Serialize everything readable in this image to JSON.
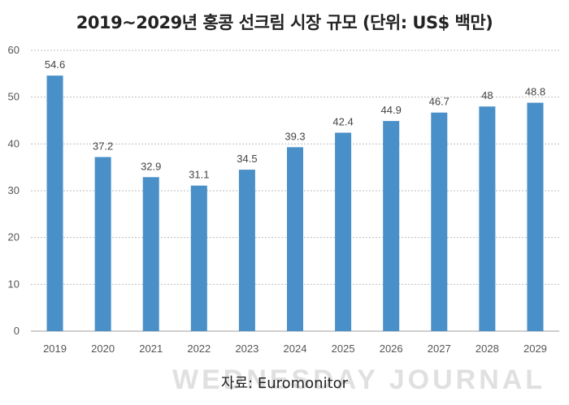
{
  "title": "2019~2029년 홍콩 선크림 시장 규모 (단위: US$ 백만)",
  "source": "자료: Euromonitor",
  "watermark": "WEDNESDAY JOURNAL",
  "colors": {
    "bar": "#4a90c8",
    "grid": "#bdbdbd",
    "axis": "#9e9e9e"
  },
  "chart_data": {
    "type": "bar",
    "title": "2019~2029년 홍콩 선크림 시장 규모 (단위: US$ 백만)",
    "categories": [
      "2019",
      "2020",
      "2021",
      "2022",
      "2023",
      "2024",
      "2025",
      "2026",
      "2027",
      "2028",
      "2029"
    ],
    "values": [
      54.6,
      37.2,
      32.9,
      31.1,
      34.5,
      39.3,
      42.4,
      44.9,
      46.7,
      48,
      48.8
    ],
    "data_labels": [
      "54.6",
      "37.2",
      "32.9",
      "31.1",
      "34.5",
      "39.3",
      "42.4",
      "44.9",
      "46.7",
      "48",
      "48.8"
    ],
    "ylim": [
      0,
      60
    ],
    "yticks": [
      0,
      10,
      20,
      30,
      40,
      50,
      60
    ],
    "xlabel": "",
    "ylabel": "",
    "grid": true
  }
}
